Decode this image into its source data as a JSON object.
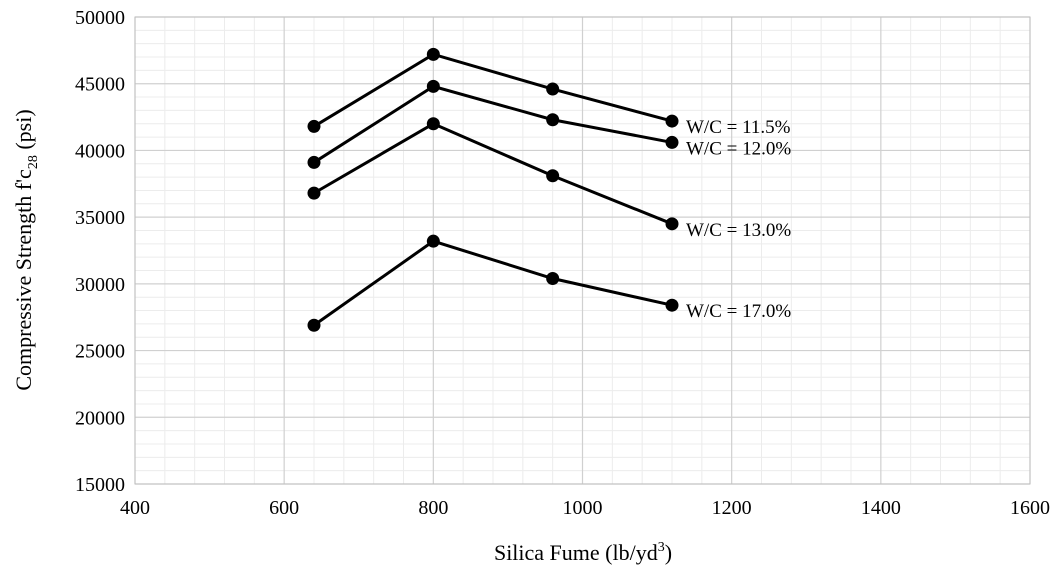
{
  "chart_data": {
    "type": "line",
    "xlabel": "Silica Fume (lb/yd",
    "xlabel_sup": "3",
    "xlabel_end": ")",
    "ylabel": "Compressive Strength f'c",
    "ylabel_sub": "28",
    "ylabel_end": " (psi)",
    "xlim": [
      400,
      1600
    ],
    "ylim": [
      15000,
      50000
    ],
    "x_ticks": [
      400,
      600,
      800,
      1000,
      1200,
      1400,
      1600
    ],
    "y_ticks": [
      15000,
      20000,
      25000,
      30000,
      35000,
      40000,
      45000,
      50000
    ],
    "grid": true,
    "x": [
      640,
      800,
      960,
      1120
    ],
    "series": [
      {
        "name": "W/C = 11.5%",
        "values": [
          41800,
          47200,
          44600,
          42200
        ]
      },
      {
        "name": "W/C = 12.0%",
        "values": [
          39100,
          44800,
          42300,
          40600
        ]
      },
      {
        "name": "W/C = 13.0%",
        "values": [
          36800,
          42000,
          38100,
          34500
        ]
      },
      {
        "name": "W/C = 17.0%",
        "values": [
          26900,
          33200,
          30400,
          28400
        ]
      }
    ]
  }
}
